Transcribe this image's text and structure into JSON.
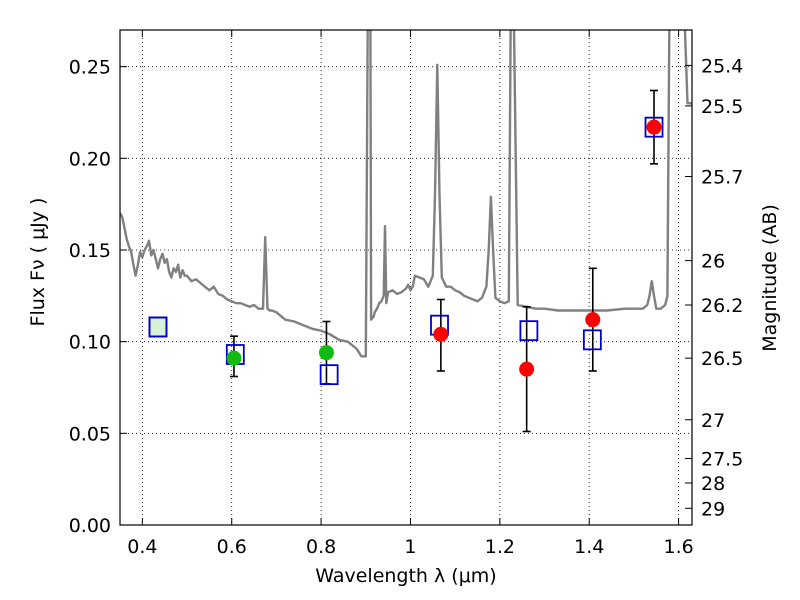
{
  "chart_data": {
    "type": "scatter",
    "xlabel": "Wavelength  λ (μm)",
    "ylabel": "Flux  Fν  ( μJy )",
    "ylabel_right": "Magnitude (AB)",
    "xlim": [
      0.35,
      1.63
    ],
    "ylim": [
      0.0,
      0.27
    ],
    "grid": true,
    "x_ticks": [
      0.4,
      0.6,
      0.8,
      1.0,
      1.2,
      1.4,
      1.6
    ],
    "x_tick_labels": [
      "0.4",
      "0.6",
      "0.8",
      "1",
      "1.2",
      "1.4",
      "1.6"
    ],
    "y_ticks": [
      0.0,
      0.05,
      0.1,
      0.15,
      0.2,
      0.25
    ],
    "y_tick_labels": [
      "0.00",
      "0.05",
      "0.10",
      "0.15",
      "0.20",
      "0.25"
    ],
    "right_ticks": [
      {
        "label": "25.4",
        "flux": 0.2507
      },
      {
        "label": "25.5",
        "flux": 0.2286
      },
      {
        "label": "25.7",
        "flux": 0.1901
      },
      {
        "label": "26",
        "flux": 0.1442
      },
      {
        "label": "26.2",
        "flux": 0.12
      },
      {
        "label": "26.5",
        "flux": 0.091
      },
      {
        "label": "27",
        "flux": 0.0574
      },
      {
        "label": "27.5",
        "flux": 0.0363
      },
      {
        "label": "28",
        "flux": 0.0229
      },
      {
        "label": "29",
        "flux": 0.0091
      }
    ],
    "model_spectrum": {
      "color": "#808080",
      "x": [
        0.35,
        0.355,
        0.36,
        0.365,
        0.37,
        0.375,
        0.38,
        0.385,
        0.39,
        0.395,
        0.4,
        0.405,
        0.41,
        0.415,
        0.42,
        0.425,
        0.43,
        0.435,
        0.44,
        0.445,
        0.45,
        0.455,
        0.46,
        0.465,
        0.47,
        0.475,
        0.48,
        0.485,
        0.49,
        0.495,
        0.5,
        0.51,
        0.52,
        0.53,
        0.54,
        0.55,
        0.56,
        0.57,
        0.58,
        0.59,
        0.6,
        0.61,
        0.62,
        0.63,
        0.64,
        0.65,
        0.66,
        0.67,
        0.675,
        0.68,
        0.685,
        0.69,
        0.7,
        0.72,
        0.74,
        0.76,
        0.78,
        0.8,
        0.82,
        0.84,
        0.86,
        0.88,
        0.89,
        0.9,
        0.905,
        0.91,
        0.912,
        0.915,
        0.918,
        0.92,
        0.925,
        0.93,
        0.935,
        0.94,
        0.943,
        0.946,
        0.95,
        0.96,
        0.97,
        0.98,
        0.99,
        0.995,
        1.0,
        1.005,
        1.01,
        1.02,
        1.03,
        1.04,
        1.05,
        1.055,
        1.06,
        1.065,
        1.07,
        1.08,
        1.09,
        1.1,
        1.11,
        1.12,
        1.13,
        1.14,
        1.15,
        1.16,
        1.17,
        1.175,
        1.18,
        1.185,
        1.19,
        1.2,
        1.21,
        1.22,
        1.225,
        1.23,
        1.24,
        1.26,
        1.28,
        1.3,
        1.33,
        1.36,
        1.4,
        1.44,
        1.48,
        1.5,
        1.52,
        1.53,
        1.535,
        1.54,
        1.545,
        1.55,
        1.56,
        1.57,
        1.575,
        1.58,
        1.585,
        1.59,
        1.6,
        1.61,
        1.62,
        1.63
      ],
      "y": [
        0.17,
        0.168,
        0.162,
        0.156,
        0.152,
        0.149,
        0.142,
        0.136,
        0.142,
        0.149,
        0.146,
        0.15,
        0.152,
        0.155,
        0.147,
        0.15,
        0.145,
        0.14,
        0.145,
        0.148,
        0.143,
        0.145,
        0.138,
        0.135,
        0.14,
        0.138,
        0.142,
        0.135,
        0.139,
        0.136,
        0.136,
        0.133,
        0.134,
        0.132,
        0.13,
        0.128,
        0.13,
        0.126,
        0.125,
        0.123,
        0.122,
        0.121,
        0.121,
        0.12,
        0.119,
        0.12,
        0.118,
        0.118,
        0.157,
        0.118,
        0.117,
        0.117,
        0.116,
        0.112,
        0.111,
        0.109,
        0.107,
        0.106,
        0.104,
        0.101,
        0.1,
        0.096,
        0.092,
        0.092,
        0.3,
        0.3,
        0.112,
        0.113,
        0.114,
        0.116,
        0.118,
        0.121,
        0.122,
        0.125,
        0.163,
        0.121,
        0.127,
        0.128,
        0.126,
        0.127,
        0.129,
        0.131,
        0.128,
        0.13,
        0.136,
        0.135,
        0.134,
        0.13,
        0.136,
        0.18,
        0.251,
        0.18,
        0.135,
        0.13,
        0.13,
        0.128,
        0.127,
        0.125,
        0.124,
        0.123,
        0.122,
        0.124,
        0.13,
        0.15,
        0.179,
        0.15,
        0.124,
        0.122,
        0.121,
        0.122,
        0.3,
        0.3,
        0.12,
        0.119,
        0.118,
        0.118,
        0.117,
        0.117,
        0.117,
        0.117,
        0.118,
        0.118,
        0.118,
        0.12,
        0.125,
        0.133,
        0.125,
        0.118,
        0.118,
        0.12,
        0.125,
        0.3,
        0.3,
        0.3,
        0.3,
        0.3,
        0.23,
        0.23
      ]
    },
    "series": [
      {
        "name": "blue squares",
        "marker": "square-open",
        "color": "#0000cc",
        "fill": "transparent",
        "x": [
          0.435,
          0.608,
          0.818,
          1.065,
          1.265,
          1.407
        ],
        "y": [
          0.108,
          0.093,
          0.082,
          0.109,
          0.106,
          0.101
        ]
      },
      {
        "name": "green square",
        "marker": "square-open",
        "color": "#0000cc",
        "fill": "#d7f2d7",
        "x": [
          0.435
        ],
        "y": [
          0.108
        ]
      },
      {
        "name": "green circles",
        "marker": "circle",
        "color": "#11bb11",
        "x": [
          0.605,
          0.812
        ],
        "y": [
          0.091,
          0.094
        ]
      },
      {
        "name": "red circles",
        "marker": "circle",
        "color": "#ff0000",
        "x": [
          1.068,
          1.26,
          1.408,
          1.545
        ],
        "y": [
          0.104,
          0.085,
          0.112,
          0.217
        ]
      },
      {
        "name": "red square",
        "marker": "square-open",
        "color": "#0000cc",
        "fill": "transparent",
        "x": [
          1.545
        ],
        "y": [
          0.217
        ]
      }
    ],
    "error_bars": [
      {
        "x": 0.605,
        "low": 0.081,
        "high": 0.103
      },
      {
        "x": 0.812,
        "low": 0.077,
        "high": 0.111
      },
      {
        "x": 1.068,
        "low": 0.084,
        "high": 0.123
      },
      {
        "x": 1.26,
        "low": 0.051,
        "high": 0.119
      },
      {
        "x": 1.408,
        "low": 0.084,
        "high": 0.14
      },
      {
        "x": 1.545,
        "low": 0.197,
        "high": 0.237
      }
    ]
  }
}
